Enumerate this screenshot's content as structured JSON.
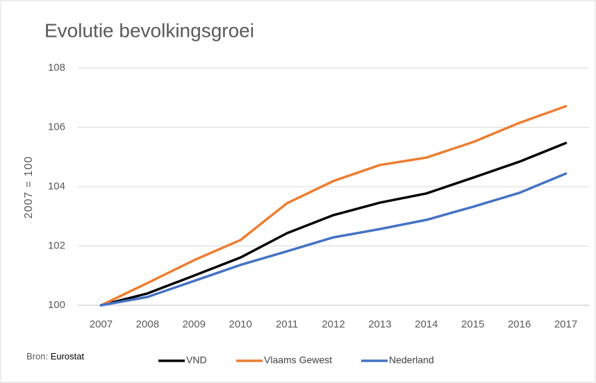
{
  "chart_data": {
    "type": "line",
    "title": "Evolutie bevolkingsgroei",
    "y_label": "2007 = 100",
    "categories": [
      "2007",
      "2008",
      "2009",
      "2010",
      "2011",
      "2012",
      "2013",
      "2014",
      "2015",
      "2016",
      "2017"
    ],
    "series": [
      {
        "name": "VND",
        "color": "#000000",
        "values": [
          100,
          100.4,
          101.0,
          101.61,
          102.43,
          103.04,
          103.46,
          103.77,
          104.3,
          104.84,
          105.47
        ]
      },
      {
        "name": "Vlaams Gewest",
        "color": "#ed7d31",
        "values": [
          100,
          100.75,
          101.52,
          102.2,
          103.44,
          104.19,
          104.73,
          104.98,
          105.5,
          106.15,
          106.71
        ]
      },
      {
        "name": "Nederland",
        "color": "#4472c4",
        "values": [
          100,
          100.28,
          100.82,
          101.36,
          101.82,
          102.29,
          102.57,
          102.88,
          103.32,
          103.79,
          104.44
        ]
      }
    ],
    "ylim": [
      100,
      108
    ],
    "yticks": [
      100,
      102,
      104,
      106,
      108
    ],
    "grid": true,
    "source_label": "Bron:",
    "source": "Eurostat",
    "legend": "bottom"
  }
}
